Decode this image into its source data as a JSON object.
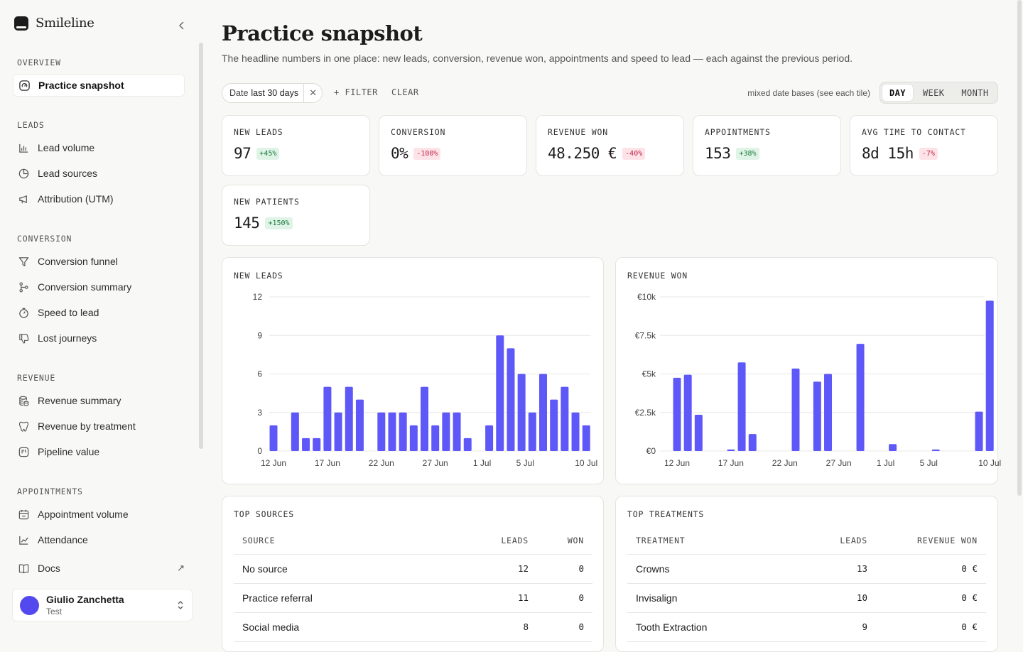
{
  "app": {
    "brand": "Smileline"
  },
  "sidebar": {
    "sections": [
      {
        "title": "OVERVIEW",
        "items": [
          {
            "label": "Practice snapshot",
            "icon": "gauge-icon",
            "active": true
          }
        ]
      },
      {
        "title": "LEADS",
        "items": [
          {
            "label": "Lead volume",
            "icon": "bar-chart-icon"
          },
          {
            "label": "Lead sources",
            "icon": "pie-chart-icon"
          },
          {
            "label": "Attribution (UTM)",
            "icon": "megaphone-icon"
          }
        ]
      },
      {
        "title": "CONVERSION",
        "items": [
          {
            "label": "Conversion funnel",
            "icon": "funnel-icon"
          },
          {
            "label": "Conversion summary",
            "icon": "git-branch-icon"
          },
          {
            "label": "Speed to lead",
            "icon": "timer-icon"
          },
          {
            "label": "Lost journeys",
            "icon": "thumbs-down-icon"
          }
        ]
      },
      {
        "title": "REVENUE",
        "items": [
          {
            "label": "Revenue summary",
            "icon": "coins-icon"
          },
          {
            "label": "Revenue by treatment",
            "icon": "tooth-icon"
          },
          {
            "label": "Pipeline value",
            "icon": "kanban-icon"
          }
        ]
      },
      {
        "title": "APPOINTMENTS",
        "items": [
          {
            "label": "Appointment volume",
            "icon": "calendar-icon"
          },
          {
            "label": "Attendance",
            "icon": "line-chart-icon"
          }
        ]
      }
    ],
    "docs": {
      "label": "Docs",
      "icon": "book-icon",
      "arrow": "↗"
    },
    "user": {
      "name": "Giulio Zanchetta",
      "sub": "Test"
    }
  },
  "header": {
    "title": "Practice snapshot",
    "subtitle": "The headline numbers in one place: new leads, conversion, revenue won, appointments and speed to lead — each against the previous period."
  },
  "toolbar": {
    "filter_chip": {
      "key": "Date",
      "value": "last 30 days"
    },
    "filter_label": "FILTER",
    "clear_label": "CLEAR",
    "note": "mixed date bases (see each tile)",
    "granularity": [
      {
        "label": "DAY",
        "active": true
      },
      {
        "label": "WEEK"
      },
      {
        "label": "MONTH"
      }
    ]
  },
  "kpis": [
    {
      "label": "NEW LEADS",
      "value": "97",
      "delta": "+45%",
      "dir": "up"
    },
    {
      "label": "CONVERSION",
      "value": "0%",
      "delta": "-100%",
      "dir": "down"
    },
    {
      "label": "REVENUE WON",
      "value": "48.250 €",
      "delta": "-40%",
      "dir": "down"
    },
    {
      "label": "APPOINTMENTS",
      "value": "153",
      "delta": "+38%",
      "dir": "up"
    },
    {
      "label": "AVG TIME TO CONTACT",
      "value": "8d 15h",
      "delta": "-7%",
      "dir": "down"
    },
    {
      "label": "NEW PATIENTS",
      "value": "145",
      "delta": "+150%",
      "dir": "up"
    }
  ],
  "colors": {
    "bar": "#5f58f8",
    "up_bg": "#dff4e6",
    "down_bg": "#fde3e8"
  },
  "chart_data": [
    {
      "type": "bar",
      "title": "NEW LEADS",
      "xtick_labels": [
        "12 Jun",
        "17 Jun",
        "22 Jun",
        "27 Jun",
        "1 Jul",
        "5 Jul",
        "10 Jul"
      ],
      "ytick_labels": [
        "0",
        "3",
        "6",
        "9",
        "12"
      ],
      "ylim": [
        0,
        12
      ],
      "grid": true,
      "values": [
        2,
        0,
        3,
        1,
        1,
        5,
        3,
        5,
        4,
        0,
        3,
        3,
        3,
        2,
        5,
        2,
        3,
        3,
        1,
        0,
        2,
        9,
        8,
        6,
        3,
        6,
        4,
        5,
        3,
        2
      ]
    },
    {
      "type": "bar",
      "title": "REVENUE WON",
      "xtick_labels": [
        "12 Jun",
        "17 Jun",
        "22 Jun",
        "27 Jun",
        "1 Jul",
        "5 Jul",
        "10 Jul"
      ],
      "ytick_labels": [
        "€0",
        "€2.5k",
        "€5k",
        "€7.5k",
        "€10k"
      ],
      "ylim": [
        0,
        10000
      ],
      "grid": true,
      "values": [
        4750,
        4950,
        2350,
        0,
        0,
        100,
        5750,
        1100,
        0,
        0,
        0,
        5350,
        0,
        4500,
        5000,
        0,
        0,
        6950,
        0,
        0,
        450,
        0,
        0,
        0,
        100,
        0,
        0,
        0,
        2550,
        9750
      ]
    }
  ],
  "tables": {
    "sources": {
      "title": "TOP SOURCES",
      "columns": [
        "SOURCE",
        "LEADS",
        "WON"
      ],
      "rows": [
        {
          "name": "No source",
          "leads": "12",
          "won": "0"
        },
        {
          "name": "Practice referral",
          "leads": "11",
          "won": "0"
        },
        {
          "name": "Social media",
          "leads": "8",
          "won": "0"
        }
      ]
    },
    "treatments": {
      "title": "TOP TREATMENTS",
      "columns": [
        "TREATMENT",
        "LEADS",
        "REVENUE WON"
      ],
      "rows": [
        {
          "name": "Crowns",
          "leads": "13",
          "won": "0 €"
        },
        {
          "name": "Invisalign",
          "leads": "10",
          "won": "0 €"
        },
        {
          "name": "Tooth Extraction",
          "leads": "9",
          "won": "0 €"
        }
      ]
    }
  }
}
